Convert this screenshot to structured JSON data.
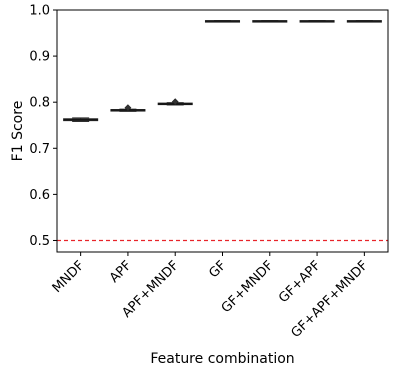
{
  "chart_data": {
    "type": "box",
    "xlabel": "Feature combination",
    "ylabel": "F1 Score",
    "ylim": [
      0.475,
      1.0
    ],
    "yticks": [
      0.5,
      0.6,
      0.7,
      0.8,
      0.9,
      1.0
    ],
    "ytick_labels": [
      "0.5",
      "0.6",
      "0.7",
      "0.8",
      "0.9",
      "1.0"
    ],
    "categories": [
      "MNDF",
      "APF",
      "APF+MNDF",
      "GF",
      "GF+MNDF",
      "GF+APF",
      "GF+APF+MNDF"
    ],
    "boxes": [
      {
        "q1": 0.76,
        "median": 0.762,
        "q3": 0.764,
        "whisker_low": 0.758,
        "whisker_high": 0.766,
        "outliers": []
      },
      {
        "q1": 0.781,
        "median": 0.783,
        "q3": 0.784,
        "whisker_low": 0.78,
        "whisker_high": 0.785,
        "outliers": [
          0.788
        ]
      },
      {
        "q1": 0.795,
        "median": 0.796,
        "q3": 0.798,
        "whisker_low": 0.794,
        "whisker_high": 0.799,
        "outliers": [
          0.801
        ]
      },
      {
        "q1": 0.975,
        "median": 0.976,
        "q3": 0.977,
        "whisker_low": 0.975,
        "whisker_high": 0.977,
        "outliers": []
      },
      {
        "q1": 0.975,
        "median": 0.976,
        "q3": 0.977,
        "whisker_low": 0.975,
        "whisker_high": 0.977,
        "outliers": []
      },
      {
        "q1": 0.975,
        "median": 0.976,
        "q3": 0.977,
        "whisker_low": 0.975,
        "whisker_high": 0.977,
        "outliers": []
      },
      {
        "q1": 0.975,
        "median": 0.976,
        "q3": 0.977,
        "whisker_low": 0.975,
        "whisker_high": 0.977,
        "outliers": []
      }
    ],
    "reference_line": {
      "y": 0.5,
      "style": "dashed",
      "color": "#e8242a"
    },
    "box_color": "#555555",
    "grid": false
  }
}
